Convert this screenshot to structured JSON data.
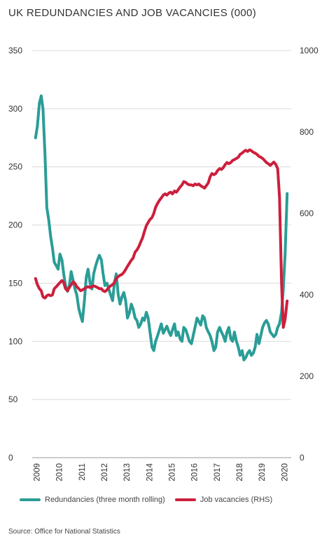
{
  "chart_data": {
    "type": "line",
    "title": "UK REDUNDANCIES AND JOB VACANCIES (000)",
    "source": "Source: Office for National Statistics",
    "x_categories": [
      "2009",
      "2010",
      "2011",
      "2012",
      "2013",
      "2014",
      "2015",
      "2016",
      "2017",
      "2018",
      "2019",
      "2020"
    ],
    "y_left": {
      "min": 0,
      "max": 350,
      "ticks": [
        0,
        50,
        100,
        150,
        200,
        250,
        300,
        350
      ]
    },
    "y_right": {
      "min": 0,
      "max": 1000,
      "ticks": [
        0,
        200,
        400,
        600,
        800,
        1000
      ]
    },
    "grid": true,
    "legend_position": "bottom",
    "colors": {
      "redundancies": "#2a9d96",
      "vacancies": "#cc1f3c"
    },
    "series": [
      {
        "name": "Redundancies (three month rolling)",
        "axis": "left",
        "points": [
          [
            2009.0,
            275
          ],
          [
            2009.08,
            285
          ],
          [
            2009.17,
            305
          ],
          [
            2009.25,
            311
          ],
          [
            2009.33,
            300
          ],
          [
            2009.42,
            260
          ],
          [
            2009.5,
            215
          ],
          [
            2009.58,
            205
          ],
          [
            2009.67,
            190
          ],
          [
            2009.75,
            180
          ],
          [
            2009.83,
            168
          ],
          [
            2009.92,
            165
          ],
          [
            2010.0,
            162
          ],
          [
            2010.08,
            175
          ],
          [
            2010.17,
            170
          ],
          [
            2010.25,
            158
          ],
          [
            2010.33,
            148
          ],
          [
            2010.42,
            143
          ],
          [
            2010.5,
            148
          ],
          [
            2010.58,
            160
          ],
          [
            2010.67,
            152
          ],
          [
            2010.75,
            145
          ],
          [
            2010.83,
            140
          ],
          [
            2010.92,
            128
          ],
          [
            2011.0,
            122
          ],
          [
            2011.08,
            117
          ],
          [
            2011.17,
            135
          ],
          [
            2011.25,
            155
          ],
          [
            2011.33,
            162
          ],
          [
            2011.42,
            150
          ],
          [
            2011.5,
            145
          ],
          [
            2011.58,
            158
          ],
          [
            2011.67,
            165
          ],
          [
            2011.75,
            170
          ],
          [
            2011.83,
            174
          ],
          [
            2011.92,
            170
          ],
          [
            2012.0,
            158
          ],
          [
            2012.08,
            148
          ],
          [
            2012.17,
            150
          ],
          [
            2012.25,
            145
          ],
          [
            2012.33,
            140
          ],
          [
            2012.42,
            135
          ],
          [
            2012.5,
            150
          ],
          [
            2012.58,
            158
          ],
          [
            2012.67,
            140
          ],
          [
            2012.75,
            132
          ],
          [
            2012.83,
            138
          ],
          [
            2012.92,
            142
          ],
          [
            2013.0,
            135
          ],
          [
            2013.08,
            120
          ],
          [
            2013.17,
            125
          ],
          [
            2013.25,
            132
          ],
          [
            2013.33,
            128
          ],
          [
            2013.42,
            120
          ],
          [
            2013.5,
            118
          ],
          [
            2013.58,
            112
          ],
          [
            2013.67,
            115
          ],
          [
            2013.75,
            120
          ],
          [
            2013.83,
            118
          ],
          [
            2013.92,
            125
          ],
          [
            2014.0,
            120
          ],
          [
            2014.08,
            108
          ],
          [
            2014.17,
            95
          ],
          [
            2014.25,
            92
          ],
          [
            2014.33,
            100
          ],
          [
            2014.42,
            105
          ],
          [
            2014.5,
            110
          ],
          [
            2014.58,
            115
          ],
          [
            2014.67,
            107
          ],
          [
            2014.75,
            110
          ],
          [
            2014.83,
            113
          ],
          [
            2014.92,
            108
          ],
          [
            2015.0,
            105
          ],
          [
            2015.08,
            110
          ],
          [
            2015.17,
            115
          ],
          [
            2015.25,
            105
          ],
          [
            2015.33,
            108
          ],
          [
            2015.42,
            102
          ],
          [
            2015.5,
            100
          ],
          [
            2015.58,
            112
          ],
          [
            2015.67,
            110
          ],
          [
            2015.75,
            105
          ],
          [
            2015.83,
            100
          ],
          [
            2015.92,
            98
          ],
          [
            2016.0,
            105
          ],
          [
            2016.08,
            112
          ],
          [
            2016.17,
            120
          ],
          [
            2016.25,
            117
          ],
          [
            2016.33,
            114
          ],
          [
            2016.42,
            122
          ],
          [
            2016.5,
            120
          ],
          [
            2016.58,
            112
          ],
          [
            2016.67,
            108
          ],
          [
            2016.75,
            105
          ],
          [
            2016.83,
            100
          ],
          [
            2016.92,
            92
          ],
          [
            2017.0,
            95
          ],
          [
            2017.08,
            108
          ],
          [
            2017.17,
            112
          ],
          [
            2017.25,
            108
          ],
          [
            2017.33,
            105
          ],
          [
            2017.42,
            100
          ],
          [
            2017.5,
            108
          ],
          [
            2017.58,
            112
          ],
          [
            2017.67,
            102
          ],
          [
            2017.75,
            100
          ],
          [
            2017.83,
            108
          ],
          [
            2017.92,
            100
          ],
          [
            2018.0,
            95
          ],
          [
            2018.08,
            88
          ],
          [
            2018.17,
            92
          ],
          [
            2018.25,
            84
          ],
          [
            2018.33,
            86
          ],
          [
            2018.42,
            90
          ],
          [
            2018.5,
            92
          ],
          [
            2018.58,
            88
          ],
          [
            2018.67,
            90
          ],
          [
            2018.75,
            95
          ],
          [
            2018.83,
            106
          ],
          [
            2018.92,
            98
          ],
          [
            2019.0,
            105
          ],
          [
            2019.08,
            112
          ],
          [
            2019.17,
            116
          ],
          [
            2019.25,
            118
          ],
          [
            2019.33,
            115
          ],
          [
            2019.42,
            108
          ],
          [
            2019.5,
            106
          ],
          [
            2019.58,
            104
          ],
          [
            2019.67,
            106
          ],
          [
            2019.75,
            112
          ],
          [
            2019.83,
            115
          ],
          [
            2019.92,
            125
          ],
          [
            2020.0,
            145
          ],
          [
            2020.08,
            175
          ],
          [
            2020.17,
            227
          ]
        ]
      },
      {
        "name": "Job vacancies (RHS)",
        "axis": "right",
        "points": [
          [
            2009.0,
            440
          ],
          [
            2009.08,
            425
          ],
          [
            2009.17,
            415
          ],
          [
            2009.25,
            410
          ],
          [
            2009.33,
            395
          ],
          [
            2009.42,
            392
          ],
          [
            2009.5,
            398
          ],
          [
            2009.58,
            400
          ],
          [
            2009.67,
            398
          ],
          [
            2009.75,
            400
          ],
          [
            2009.83,
            415
          ],
          [
            2009.92,
            420
          ],
          [
            2010.0,
            425
          ],
          [
            2010.08,
            430
          ],
          [
            2010.17,
            435
          ],
          [
            2010.25,
            430
          ],
          [
            2010.33,
            415
          ],
          [
            2010.42,
            410
          ],
          [
            2010.5,
            418
          ],
          [
            2010.58,
            425
          ],
          [
            2010.67,
            432
          ],
          [
            2010.75,
            428
          ],
          [
            2010.83,
            420
          ],
          [
            2010.92,
            415
          ],
          [
            2011.0,
            410
          ],
          [
            2011.08,
            412
          ],
          [
            2011.17,
            415
          ],
          [
            2011.25,
            418
          ],
          [
            2011.33,
            420
          ],
          [
            2011.42,
            418
          ],
          [
            2011.5,
            420
          ],
          [
            2011.58,
            422
          ],
          [
            2011.67,
            420
          ],
          [
            2011.75,
            418
          ],
          [
            2011.83,
            415
          ],
          [
            2011.92,
            415
          ],
          [
            2012.0,
            410
          ],
          [
            2012.08,
            408
          ],
          [
            2012.17,
            412
          ],
          [
            2012.25,
            418
          ],
          [
            2012.33,
            422
          ],
          [
            2012.42,
            425
          ],
          [
            2012.5,
            430
          ],
          [
            2012.58,
            440
          ],
          [
            2012.67,
            445
          ],
          [
            2012.75,
            448
          ],
          [
            2012.83,
            450
          ],
          [
            2012.92,
            455
          ],
          [
            2013.0,
            462
          ],
          [
            2013.08,
            470
          ],
          [
            2013.17,
            478
          ],
          [
            2013.25,
            485
          ],
          [
            2013.33,
            490
          ],
          [
            2013.42,
            505
          ],
          [
            2013.5,
            510
          ],
          [
            2013.58,
            518
          ],
          [
            2013.67,
            530
          ],
          [
            2013.75,
            540
          ],
          [
            2013.83,
            555
          ],
          [
            2013.92,
            570
          ],
          [
            2014.0,
            578
          ],
          [
            2014.08,
            585
          ],
          [
            2014.17,
            590
          ],
          [
            2014.25,
            600
          ],
          [
            2014.33,
            615
          ],
          [
            2014.42,
            625
          ],
          [
            2014.5,
            632
          ],
          [
            2014.58,
            638
          ],
          [
            2014.67,
            645
          ],
          [
            2014.75,
            648
          ],
          [
            2014.83,
            645
          ],
          [
            2014.92,
            650
          ],
          [
            2015.0,
            652
          ],
          [
            2015.08,
            648
          ],
          [
            2015.17,
            655
          ],
          [
            2015.25,
            652
          ],
          [
            2015.33,
            658
          ],
          [
            2015.42,
            665
          ],
          [
            2015.5,
            670
          ],
          [
            2015.58,
            678
          ],
          [
            2015.67,
            676
          ],
          [
            2015.75,
            672
          ],
          [
            2015.83,
            670
          ],
          [
            2015.92,
            670
          ],
          [
            2016.0,
            668
          ],
          [
            2016.08,
            672
          ],
          [
            2016.17,
            670
          ],
          [
            2016.25,
            672
          ],
          [
            2016.33,
            668
          ],
          [
            2016.42,
            665
          ],
          [
            2016.5,
            662
          ],
          [
            2016.58,
            668
          ],
          [
            2016.67,
            675
          ],
          [
            2016.75,
            690
          ],
          [
            2016.83,
            698
          ],
          [
            2016.92,
            695
          ],
          [
            2017.0,
            698
          ],
          [
            2017.08,
            705
          ],
          [
            2017.17,
            710
          ],
          [
            2017.25,
            708
          ],
          [
            2017.33,
            712
          ],
          [
            2017.42,
            720
          ],
          [
            2017.5,
            725
          ],
          [
            2017.58,
            722
          ],
          [
            2017.67,
            725
          ],
          [
            2017.75,
            730
          ],
          [
            2017.83,
            732
          ],
          [
            2017.92,
            735
          ],
          [
            2018.0,
            738
          ],
          [
            2018.08,
            745
          ],
          [
            2018.17,
            748
          ],
          [
            2018.25,
            752
          ],
          [
            2018.33,
            755
          ],
          [
            2018.42,
            752
          ],
          [
            2018.5,
            756
          ],
          [
            2018.58,
            754
          ],
          [
            2018.67,
            750
          ],
          [
            2018.75,
            748
          ],
          [
            2018.83,
            745
          ],
          [
            2018.92,
            740
          ],
          [
            2019.0,
            738
          ],
          [
            2019.08,
            735
          ],
          [
            2019.17,
            730
          ],
          [
            2019.25,
            725
          ],
          [
            2019.33,
            722
          ],
          [
            2019.42,
            718
          ],
          [
            2019.5,
            722
          ],
          [
            2019.58,
            726
          ],
          [
            2019.67,
            720
          ],
          [
            2019.75,
            710
          ],
          [
            2019.83,
            640
          ],
          [
            2019.92,
            430
          ],
          [
            2020.0,
            320
          ],
          [
            2020.08,
            340
          ],
          [
            2020.17,
            385
          ]
        ]
      }
    ]
  }
}
